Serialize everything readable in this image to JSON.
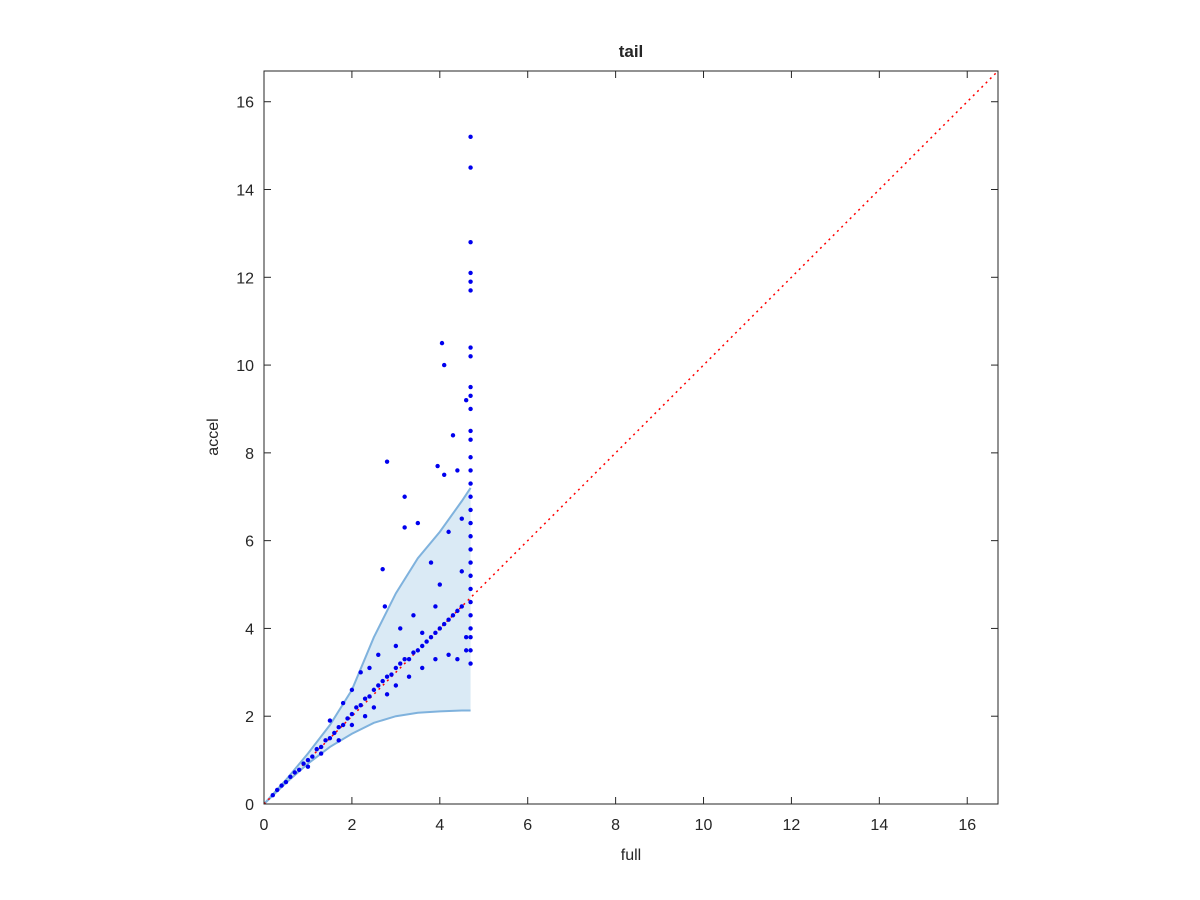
{
  "chart_data": {
    "type": "scatter",
    "title": "tail",
    "x_label": "full",
    "y_label": "accel",
    "xlim": [
      0,
      16.7
    ],
    "ylim": [
      0,
      16.7
    ],
    "xticks": [
      0,
      2,
      4,
      6,
      8,
      10,
      12,
      14,
      16
    ],
    "yticks": [
      0,
      2,
      4,
      6,
      8,
      10,
      12,
      14,
      16
    ],
    "grid": false,
    "band": {
      "color": "#bcd8ec",
      "edge_color": "#7fb2dd",
      "x": [
        0,
        0.5,
        1,
        1.5,
        2,
        2.5,
        3,
        3.5,
        4,
        4.5,
        4.7
      ],
      "upper": [
        0,
        0.55,
        1.15,
        1.8,
        2.6,
        3.8,
        4.8,
        5.6,
        6.2,
        6.9,
        7.2
      ],
      "lower": [
        0,
        0.48,
        0.92,
        1.3,
        1.6,
        1.85,
        2.0,
        2.08,
        2.11,
        2.13,
        2.13
      ]
    },
    "reference_line": {
      "color": "#ff0000",
      "x": [
        0,
        16.7
      ],
      "y": [
        0,
        16.7
      ]
    },
    "points": {
      "color": "#0000ee",
      "x": [
        0.2,
        0.3,
        0.4,
        0.5,
        0.6,
        0.7,
        0.8,
        0.9,
        1.0,
        1.1,
        1.2,
        1.3,
        1.4,
        1.5,
        1.6,
        1.7,
        1.8,
        1.9,
        2.0,
        2.1,
        2.2,
        2.3,
        2.4,
        2.5,
        2.6,
        2.7,
        2.8,
        2.9,
        3.0,
        3.1,
        3.2,
        3.3,
        3.4,
        3.5,
        3.6,
        3.7,
        3.8,
        3.9,
        4.0,
        4.1,
        4.2,
        4.3,
        4.4,
        4.5,
        1.5,
        1.8,
        2.0,
        2.2,
        2.4,
        2.6,
        2.7,
        2.8,
        2.75,
        3.0,
        3.1,
        3.2,
        3.2,
        3.4,
        3.5,
        3.6,
        3.8,
        3.9,
        3.95,
        4.0,
        4.05,
        4.1,
        4.1,
        4.2,
        4.3,
        4.4,
        4.5,
        4.6,
        4.5,
        4.6,
        1.0,
        1.3,
        1.7,
        2.0,
        2.3,
        2.5,
        2.8,
        3.0,
        3.3,
        3.6,
        3.9,
        4.2,
        4.4,
        4.6,
        4.7,
        4.7,
        4.7,
        4.7,
        4.7,
        4.7,
        4.7,
        4.7,
        4.7,
        4.7,
        4.7,
        4.7,
        4.7,
        4.7,
        4.7,
        4.7,
        4.7,
        4.7,
        4.7,
        4.7,
        4.7,
        4.7,
        4.7,
        4.7,
        4.7,
        4.7,
        4.7,
        4.7,
        4.7,
        4.7
      ],
      "y": [
        0.2,
        0.32,
        0.42,
        0.5,
        0.62,
        0.72,
        0.78,
        0.92,
        1.0,
        1.08,
        1.25,
        1.3,
        1.45,
        1.5,
        1.62,
        1.75,
        1.8,
        1.95,
        2.05,
        2.2,
        2.25,
        2.4,
        2.45,
        2.6,
        2.7,
        2.8,
        2.9,
        2.95,
        3.1,
        3.2,
        3.3,
        3.3,
        3.45,
        3.5,
        3.6,
        3.7,
        3.8,
        3.9,
        4.0,
        4.1,
        4.2,
        4.3,
        4.4,
        4.5,
        1.9,
        2.3,
        2.6,
        3.0,
        3.1,
        3.4,
        5.35,
        7.8,
        4.5,
        3.6,
        4.0,
        6.3,
        7.0,
        4.3,
        6.4,
        3.9,
        5.5,
        4.5,
        7.7,
        5.0,
        10.5,
        10.0,
        7.5,
        6.2,
        8.4,
        7.6,
        5.3,
        9.2,
        6.5,
        3.8,
        0.85,
        1.15,
        1.45,
        1.8,
        2.0,
        2.2,
        2.5,
        2.7,
        2.9,
        3.1,
        3.3,
        3.4,
        3.3,
        3.5,
        3.2,
        3.5,
        3.8,
        4.0,
        4.3,
        4.6,
        4.9,
        5.2,
        5.5,
        5.8,
        6.1,
        6.4,
        6.7,
        7.0,
        7.3,
        7.6,
        7.9,
        8.3,
        8.5,
        9.0,
        9.3,
        9.5,
        10.2,
        10.4,
        11.7,
        11.9,
        12.1,
        12.8,
        14.5,
        15.2
      ]
    }
  }
}
